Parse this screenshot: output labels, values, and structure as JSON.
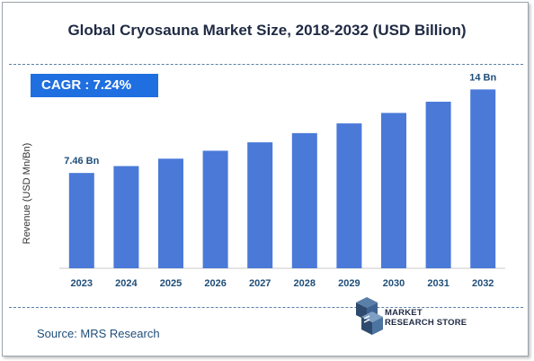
{
  "chart_data": {
    "type": "bar",
    "title": "Global Cryosauna Market Size, 2018-2032 (USD Billion)",
    "ylabel": "Revenue (USD Mn/Bn)",
    "xlabel": "",
    "categories": [
      "2023",
      "2024",
      "2025",
      "2026",
      "2027",
      "2028",
      "2029",
      "2030",
      "2031",
      "2032"
    ],
    "values": [
      7.46,
      8.0,
      8.58,
      9.2,
      9.86,
      10.58,
      11.34,
      12.16,
      13.04,
      14.0
    ],
    "data_labels": {
      "first": "7.46 Bn",
      "last": "14 Bn"
    },
    "ylim": [
      0,
      14.8
    ],
    "grid": false,
    "bar_color": "#4a79d8"
  },
  "cagr": {
    "label": "CAGR :",
    "value": "7.24%"
  },
  "source": "Source: MRS Research",
  "logo": {
    "line1": "MARKET",
    "line2": "RESEARCH STORE",
    "icon": "cube-logo-icon"
  }
}
